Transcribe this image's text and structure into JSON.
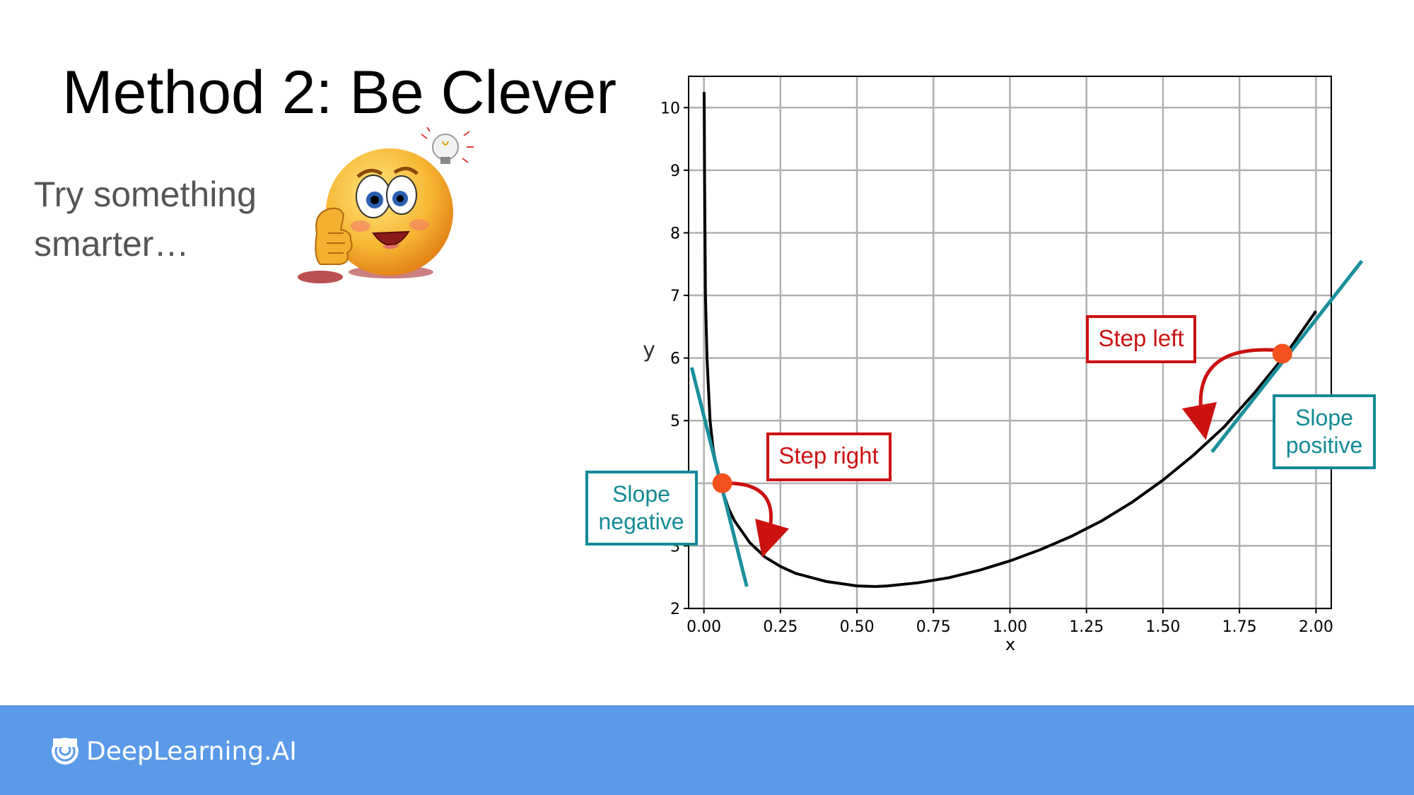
{
  "slide": {
    "title": "Method 2: Be Clever",
    "subtitle": "Try something smarter…"
  },
  "footer": {
    "brand": "DeepLearning.AI"
  },
  "icons": {
    "emoji": "thinking-emoji-thumbs-up-icon",
    "bulb": "lightbulb-icon",
    "logo": "deeplearning-logo-icon"
  },
  "colors": {
    "curve": "#000000",
    "tangent": "#1a8f9c",
    "point": "#f4511e",
    "annotation_red": "#cc1111",
    "annotation_teal": "#128a96",
    "footer": "#5b9ae9",
    "grid": "#b0b0b0"
  },
  "chart_data": {
    "type": "line",
    "xlabel": "x",
    "ylabel": "y",
    "xlim": [
      -0.05,
      2.05
    ],
    "ylim": [
      2,
      10.5
    ],
    "xticks": [
      "0.00",
      "0.25",
      "0.50",
      "0.75",
      "1.00",
      "1.25",
      "1.50",
      "1.75",
      "2.00"
    ],
    "yticks": [
      "2",
      "3",
      "4",
      "5",
      "6",
      "7",
      "8",
      "9",
      "10"
    ],
    "grid": true,
    "series": [
      {
        "x": [
          0.0005,
          0.001,
          0.002,
          0.005,
          0.01,
          0.02,
          0.03,
          0.05,
          0.08,
          0.1,
          0.15,
          0.2,
          0.25,
          0.3,
          0.4,
          0.5,
          0.56,
          0.6,
          0.7,
          0.8,
          0.9,
          1.0,
          1.1,
          1.2,
          1.3,
          1.4,
          1.5,
          1.6,
          1.7,
          1.8,
          1.9,
          2.0
        ],
        "y": [
          10.25,
          10.0,
          9.0,
          7.0,
          6.0,
          5.0,
          4.55,
          4.05,
          3.6,
          3.4,
          3.05,
          2.82,
          2.67,
          2.56,
          2.43,
          2.36,
          2.35,
          2.36,
          2.41,
          2.49,
          2.61,
          2.76,
          2.94,
          3.15,
          3.4,
          3.7,
          4.05,
          4.45,
          4.9,
          5.45,
          6.05,
          6.75
        ]
      }
    ],
    "points": [
      {
        "x": 0.06,
        "y": 4.0
      },
      {
        "x": 1.89,
        "y": 6.07
      }
    ],
    "tangents": [
      {
        "x": [
          -0.04,
          0.14
        ],
        "y": [
          5.85,
          2.35
        ]
      },
      {
        "x": [
          1.66,
          2.15
        ],
        "y": [
          4.5,
          7.55
        ]
      }
    ],
    "annotations": [
      {
        "label": "Step right",
        "color": "red"
      },
      {
        "label": "Slope negative",
        "line1": "Slope",
        "line2": "negative",
        "color": "teal"
      },
      {
        "label": "Step left",
        "color": "red"
      },
      {
        "label": "Slope positive",
        "line1": "Slope",
        "line2": "positive",
        "color": "teal"
      }
    ]
  }
}
